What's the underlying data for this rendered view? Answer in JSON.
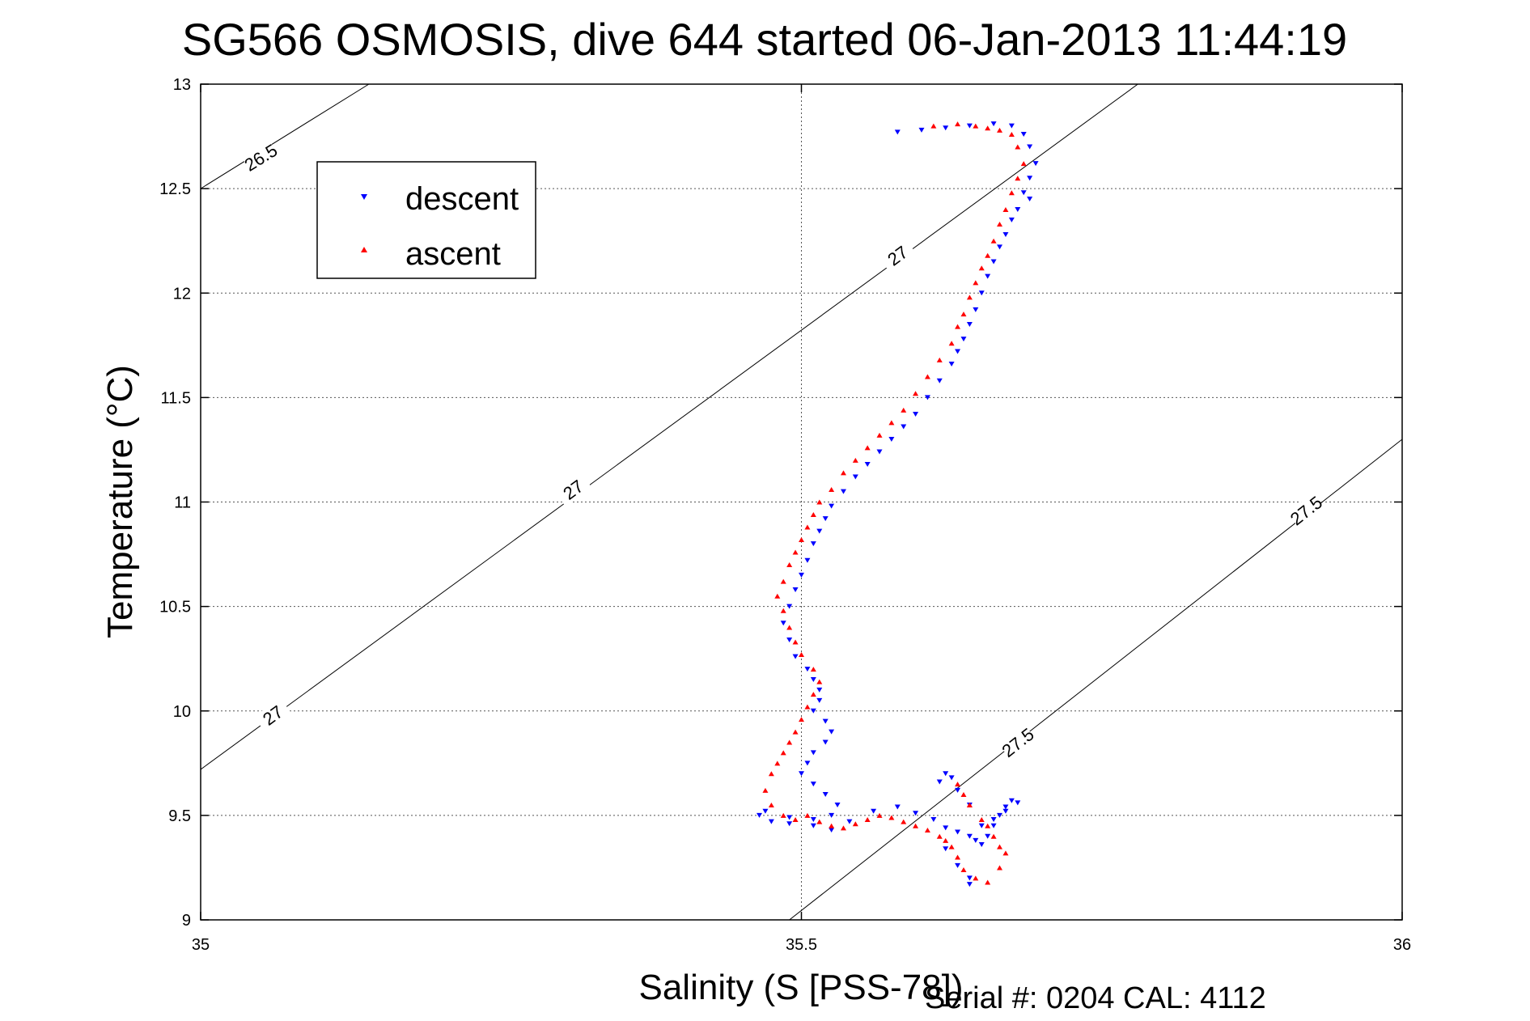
{
  "chart_data": {
    "type": "scatter",
    "title": "SG566 OSMOSIS, dive 644 started 06-Jan-2013 11:44:19",
    "xlabel": "Salinity (S [PSS-78])",
    "ylabel": "Temperature (°C)",
    "xlim": [
      35,
      36
    ],
    "ylim": [
      9,
      13
    ],
    "x_ticks": [
      35,
      35.5,
      36
    ],
    "y_ticks": [
      9,
      9.5,
      10,
      10.5,
      11,
      11.5,
      12,
      12.5,
      13
    ],
    "x_tick_labels": [
      "35",
      "35.5",
      "36"
    ],
    "y_tick_labels": [
      "9",
      "9.5",
      "10",
      "10.5",
      "11",
      "11.5",
      "12",
      "12.5",
      "13"
    ],
    "grid": true,
    "legend_position": "top-left",
    "series": [
      {
        "name": "descent",
        "marker": "triangle-down",
        "color": "#0000ff",
        "x": [
          35.58,
          35.6,
          35.62,
          35.64,
          35.66,
          35.675,
          35.685,
          35.69,
          35.695,
          35.69,
          35.685,
          35.69,
          35.68,
          35.675,
          35.67,
          35.665,
          35.66,
          35.655,
          35.65,
          35.645,
          35.64,
          35.635,
          35.63,
          35.625,
          35.615,
          35.605,
          35.595,
          35.585,
          35.575,
          35.565,
          35.555,
          35.545,
          35.535,
          35.525,
          35.52,
          35.515,
          35.51,
          35.505,
          35.5,
          35.495,
          35.49,
          35.485,
          35.49,
          35.495,
          35.505,
          35.51,
          35.515,
          35.515,
          35.51,
          35.52,
          35.525,
          35.52,
          35.51,
          35.505,
          35.5,
          35.51,
          35.52,
          35.53,
          35.525,
          35.51,
          35.49,
          35.475,
          35.465,
          35.47,
          35.49,
          35.51,
          35.525,
          35.54,
          35.56,
          35.58,
          35.595,
          35.61,
          35.62,
          35.63,
          35.64,
          35.645,
          35.65,
          35.655,
          35.66,
          35.665,
          35.67,
          35.675,
          35.68,
          35.67,
          35.66,
          35.65,
          35.64,
          35.63,
          35.625,
          35.62,
          35.615,
          35.62,
          35.63,
          35.64,
          35.64
        ],
        "y": [
          12.77,
          12.78,
          12.79,
          12.8,
          12.81,
          12.8,
          12.76,
          12.7,
          12.62,
          12.55,
          12.48,
          12.45,
          12.4,
          12.35,
          12.28,
          12.22,
          12.15,
          12.08,
          12.0,
          11.92,
          11.85,
          11.78,
          11.72,
          11.66,
          11.58,
          11.5,
          11.42,
          11.36,
          11.3,
          11.24,
          11.18,
          11.12,
          11.05,
          10.98,
          10.92,
          10.86,
          10.8,
          10.72,
          10.65,
          10.58,
          10.5,
          10.42,
          10.34,
          10.26,
          10.2,
          10.15,
          10.1,
          10.05,
          10.0,
          9.95,
          9.9,
          9.85,
          9.8,
          9.75,
          9.7,
          9.65,
          9.6,
          9.55,
          9.5,
          9.48,
          9.46,
          9.47,
          9.5,
          9.52,
          9.49,
          9.45,
          9.43,
          9.47,
          9.52,
          9.54,
          9.51,
          9.48,
          9.44,
          9.42,
          9.4,
          9.38,
          9.36,
          9.4,
          9.45,
          9.5,
          9.54,
          9.57,
          9.56,
          9.52,
          9.48,
          9.45,
          9.55,
          9.62,
          9.68,
          9.7,
          9.66,
          9.34,
          9.26,
          9.2,
          9.17
        ]
      },
      {
        "name": "ascent",
        "marker": "triangle-up",
        "color": "#ff0000",
        "x": [
          35.61,
          35.63,
          35.645,
          35.655,
          35.665,
          35.675,
          35.68,
          35.685,
          35.68,
          35.675,
          35.67,
          35.665,
          35.66,
          35.655,
          35.65,
          35.645,
          35.64,
          35.635,
          35.63,
          35.625,
          35.615,
          35.605,
          35.595,
          35.585,
          35.575,
          35.565,
          35.555,
          35.545,
          35.535,
          35.525,
          35.515,
          35.51,
          35.505,
          35.5,
          35.495,
          35.49,
          35.485,
          35.48,
          35.485,
          35.49,
          35.495,
          35.5,
          35.51,
          35.515,
          35.51,
          35.505,
          35.5,
          35.495,
          35.49,
          35.485,
          35.48,
          35.475,
          35.47,
          35.475,
          35.485,
          35.495,
          35.505,
          35.515,
          35.525,
          35.535,
          35.545,
          35.555,
          35.565,
          35.575,
          35.585,
          35.595,
          35.605,
          35.615,
          35.62,
          35.625,
          35.63,
          35.635,
          35.645,
          35.655,
          35.665,
          35.67,
          35.66,
          35.65,
          35.64,
          35.635,
          35.63,
          35.64,
          35.655,
          35.665
        ],
        "y": [
          12.8,
          12.81,
          12.8,
          12.79,
          12.78,
          12.76,
          12.7,
          12.62,
          12.55,
          12.48,
          12.4,
          12.33,
          12.25,
          12.18,
          12.12,
          12.05,
          11.98,
          11.9,
          11.84,
          11.76,
          11.68,
          11.6,
          11.52,
          11.44,
          11.38,
          11.32,
          11.26,
          11.2,
          11.14,
          11.06,
          11.0,
          10.94,
          10.88,
          10.82,
          10.76,
          10.7,
          10.62,
          10.55,
          10.48,
          10.4,
          10.33,
          10.27,
          10.2,
          10.14,
          10.08,
          10.02,
          9.96,
          9.9,
          9.85,
          9.8,
          9.75,
          9.7,
          9.62,
          9.55,
          9.5,
          9.48,
          9.5,
          9.47,
          9.45,
          9.44,
          9.46,
          9.48,
          9.5,
          9.49,
          9.47,
          9.45,
          9.43,
          9.4,
          9.38,
          9.35,
          9.3,
          9.24,
          9.2,
          9.18,
          9.25,
          9.32,
          9.4,
          9.48,
          9.55,
          9.6,
          9.65,
          9.55,
          9.45,
          9.35
        ]
      }
    ],
    "isopycnals": [
      {
        "label": "26.5",
        "points": [
          [
            35.0,
            12.5
          ],
          [
            35.14,
            13.0
          ]
        ],
        "label_positions": [
          [
            35.05,
            12.65
          ]
        ]
      },
      {
        "label": "27",
        "points": [
          [
            35.0,
            9.72
          ],
          [
            35.78,
            13.0
          ]
        ],
        "label_positions": [
          [
            35.06,
            9.98
          ],
          [
            35.31,
            11.06
          ],
          [
            35.58,
            12.18
          ]
        ]
      },
      {
        "label": "27.5",
        "points": [
          [
            35.49,
            9.0
          ],
          [
            36.0,
            11.3
          ]
        ],
        "label_positions": [
          [
            35.68,
            9.85
          ],
          [
            35.92,
            10.96
          ]
        ]
      }
    ]
  },
  "footer": {
    "serial_text": "Serial #: 0204  CAL: 4112"
  }
}
